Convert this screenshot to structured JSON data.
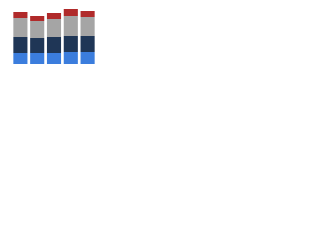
{
  "chart_data": {
    "type": "bar",
    "stacked": true,
    "categories": [
      null,
      null,
      null,
      null,
      null
    ],
    "series": [
      {
        "color": "#3b7ddd",
        "values": [
          11,
          11,
          11,
          12,
          12
        ]
      },
      {
        "color": "#1f3656",
        "values": [
          16,
          15,
          16,
          16,
          16
        ]
      },
      {
        "color": "#a5a5a5",
        "values": [
          19,
          17,
          18,
          20,
          19
        ]
      },
      {
        "color": "#b02a2a",
        "values": [
          6,
          5,
          6,
          7,
          6
        ]
      }
    ],
    "ylim": [
      0,
      60
    ]
  }
}
